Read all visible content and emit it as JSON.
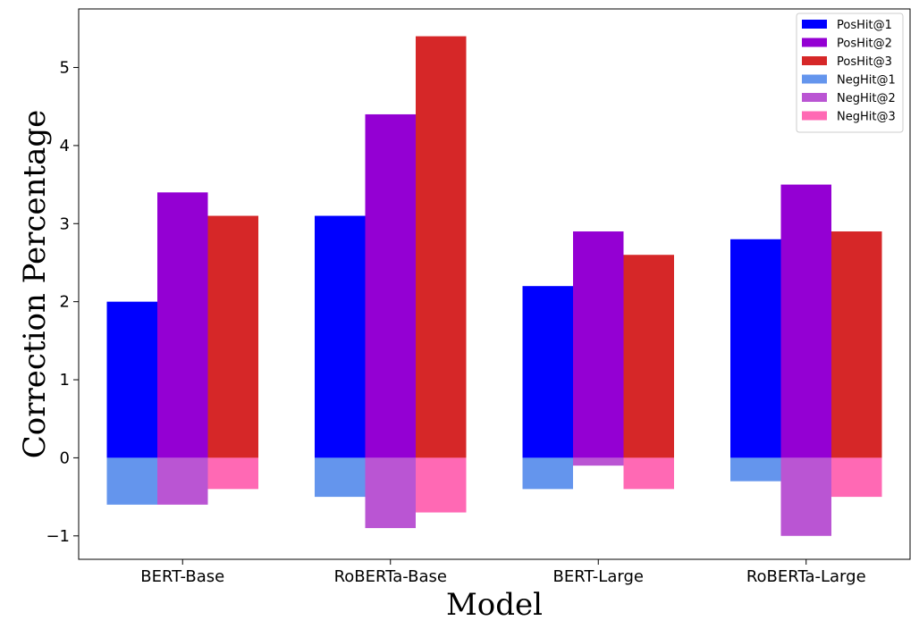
{
  "chart_data": {
    "type": "bar",
    "title": "",
    "xlabel": "Model",
    "ylabel": "Correction Percentage",
    "categories": [
      "BERT-Base",
      "RoBERTa-Base",
      "BERT-Large",
      "RoBERTa-Large"
    ],
    "ylim": [
      -1.3,
      5.75
    ],
    "yticks": [
      -1,
      0,
      1,
      2,
      3,
      4,
      5
    ],
    "ytick_labels": [
      "−1",
      "0",
      "1",
      "2",
      "3",
      "4",
      "5"
    ],
    "grid": false,
    "legend_position": "top-right",
    "series": [
      {
        "name": "PosHit@1",
        "color": "#0000ff",
        "values": [
          2.0,
          3.1,
          2.2,
          2.8
        ]
      },
      {
        "name": "PosHit@2",
        "color": "#9400d3",
        "values": [
          3.4,
          4.4,
          2.9,
          3.5
        ]
      },
      {
        "name": "PosHit@3",
        "color": "#d62728",
        "values": [
          3.1,
          5.4,
          2.6,
          2.9
        ]
      },
      {
        "name": "NegHit@1",
        "color": "#6495ed",
        "values": [
          -0.6,
          -0.5,
          -0.4,
          -0.3
        ]
      },
      {
        "name": "NegHit@2",
        "color": "#ba55d3",
        "values": [
          -0.6,
          -0.9,
          -0.1,
          -1.0
        ]
      },
      {
        "name": "NegHit@3",
        "color": "#ff69b4",
        "values": [
          -0.4,
          -0.7,
          -0.4,
          -0.5
        ]
      }
    ]
  }
}
